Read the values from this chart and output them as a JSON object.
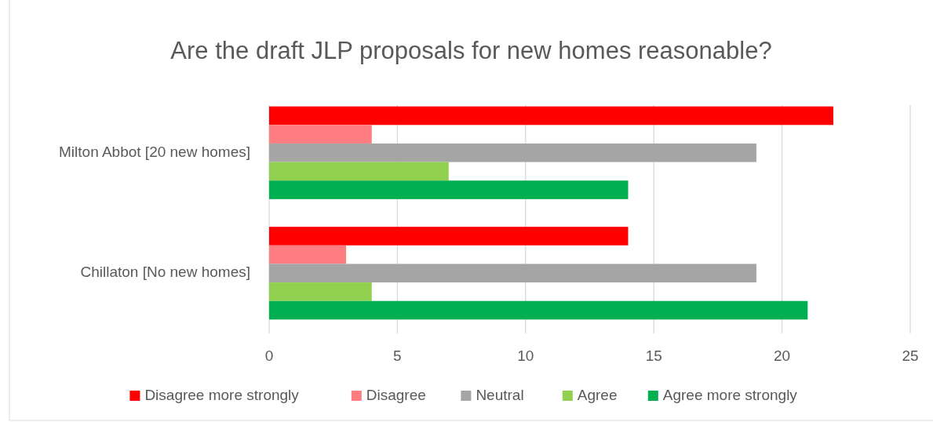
{
  "chart_data": {
    "type": "bar",
    "orientation": "horizontal",
    "title": "Are the draft JLP proposals for new homes reasonable?",
    "categories": [
      "Milton Abbot [20 new homes]",
      "Chillaton [No new homes]"
    ],
    "series": [
      {
        "name": "Disagree more strongly",
        "color": "#ff0000",
        "values": [
          22,
          14
        ]
      },
      {
        "name": "Disagree",
        "color": "#ff7c80",
        "values": [
          4,
          3
        ]
      },
      {
        "name": "Neutral",
        "color": "#a5a5a5",
        "values": [
          19,
          19
        ]
      },
      {
        "name": "Agree",
        "color": "#92d050",
        "values": [
          7,
          4
        ]
      },
      {
        "name": "Agree more strongly",
        "color": "#00b050",
        "values": [
          14,
          21
        ]
      }
    ],
    "xlim": [
      0,
      25
    ],
    "xticks": [
      0,
      5,
      10,
      15,
      20,
      25
    ],
    "grid": "x",
    "legend": "bottom"
  }
}
